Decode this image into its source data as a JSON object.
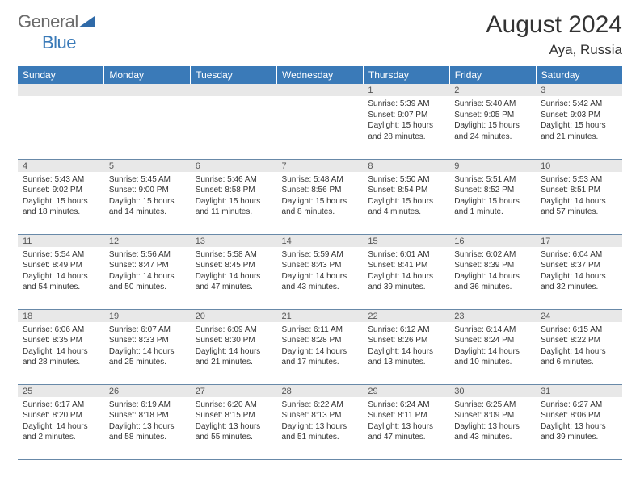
{
  "logo": {
    "text_a": "General",
    "text_b": "Blue"
  },
  "header": {
    "title": "August 2024",
    "location": "Aya, Russia"
  },
  "colors": {
    "header_bg": "#3a7ab8",
    "header_fg": "#ffffff",
    "daynum_bg": "#e8e8e8",
    "rule": "#6889a8",
    "text": "#333333"
  },
  "weekday_labels": [
    "Sunday",
    "Monday",
    "Tuesday",
    "Wednesday",
    "Thursday",
    "Friday",
    "Saturday"
  ],
  "weeks": [
    [
      null,
      null,
      null,
      null,
      {
        "n": "1",
        "sr": "Sunrise: 5:39 AM",
        "ss": "Sunset: 9:07 PM",
        "dl": "Daylight: 15 hours and 28 minutes."
      },
      {
        "n": "2",
        "sr": "Sunrise: 5:40 AM",
        "ss": "Sunset: 9:05 PM",
        "dl": "Daylight: 15 hours and 24 minutes."
      },
      {
        "n": "3",
        "sr": "Sunrise: 5:42 AM",
        "ss": "Sunset: 9:03 PM",
        "dl": "Daylight: 15 hours and 21 minutes."
      }
    ],
    [
      {
        "n": "4",
        "sr": "Sunrise: 5:43 AM",
        "ss": "Sunset: 9:02 PM",
        "dl": "Daylight: 15 hours and 18 minutes."
      },
      {
        "n": "5",
        "sr": "Sunrise: 5:45 AM",
        "ss": "Sunset: 9:00 PM",
        "dl": "Daylight: 15 hours and 14 minutes."
      },
      {
        "n": "6",
        "sr": "Sunrise: 5:46 AM",
        "ss": "Sunset: 8:58 PM",
        "dl": "Daylight: 15 hours and 11 minutes."
      },
      {
        "n": "7",
        "sr": "Sunrise: 5:48 AM",
        "ss": "Sunset: 8:56 PM",
        "dl": "Daylight: 15 hours and 8 minutes."
      },
      {
        "n": "8",
        "sr": "Sunrise: 5:50 AM",
        "ss": "Sunset: 8:54 PM",
        "dl": "Daylight: 15 hours and 4 minutes."
      },
      {
        "n": "9",
        "sr": "Sunrise: 5:51 AM",
        "ss": "Sunset: 8:52 PM",
        "dl": "Daylight: 15 hours and 1 minute."
      },
      {
        "n": "10",
        "sr": "Sunrise: 5:53 AM",
        "ss": "Sunset: 8:51 PM",
        "dl": "Daylight: 14 hours and 57 minutes."
      }
    ],
    [
      {
        "n": "11",
        "sr": "Sunrise: 5:54 AM",
        "ss": "Sunset: 8:49 PM",
        "dl": "Daylight: 14 hours and 54 minutes."
      },
      {
        "n": "12",
        "sr": "Sunrise: 5:56 AM",
        "ss": "Sunset: 8:47 PM",
        "dl": "Daylight: 14 hours and 50 minutes."
      },
      {
        "n": "13",
        "sr": "Sunrise: 5:58 AM",
        "ss": "Sunset: 8:45 PM",
        "dl": "Daylight: 14 hours and 47 minutes."
      },
      {
        "n": "14",
        "sr": "Sunrise: 5:59 AM",
        "ss": "Sunset: 8:43 PM",
        "dl": "Daylight: 14 hours and 43 minutes."
      },
      {
        "n": "15",
        "sr": "Sunrise: 6:01 AM",
        "ss": "Sunset: 8:41 PM",
        "dl": "Daylight: 14 hours and 39 minutes."
      },
      {
        "n": "16",
        "sr": "Sunrise: 6:02 AM",
        "ss": "Sunset: 8:39 PM",
        "dl": "Daylight: 14 hours and 36 minutes."
      },
      {
        "n": "17",
        "sr": "Sunrise: 6:04 AM",
        "ss": "Sunset: 8:37 PM",
        "dl": "Daylight: 14 hours and 32 minutes."
      }
    ],
    [
      {
        "n": "18",
        "sr": "Sunrise: 6:06 AM",
        "ss": "Sunset: 8:35 PM",
        "dl": "Daylight: 14 hours and 28 minutes."
      },
      {
        "n": "19",
        "sr": "Sunrise: 6:07 AM",
        "ss": "Sunset: 8:33 PM",
        "dl": "Daylight: 14 hours and 25 minutes."
      },
      {
        "n": "20",
        "sr": "Sunrise: 6:09 AM",
        "ss": "Sunset: 8:30 PM",
        "dl": "Daylight: 14 hours and 21 minutes."
      },
      {
        "n": "21",
        "sr": "Sunrise: 6:11 AM",
        "ss": "Sunset: 8:28 PM",
        "dl": "Daylight: 14 hours and 17 minutes."
      },
      {
        "n": "22",
        "sr": "Sunrise: 6:12 AM",
        "ss": "Sunset: 8:26 PM",
        "dl": "Daylight: 14 hours and 13 minutes."
      },
      {
        "n": "23",
        "sr": "Sunrise: 6:14 AM",
        "ss": "Sunset: 8:24 PM",
        "dl": "Daylight: 14 hours and 10 minutes."
      },
      {
        "n": "24",
        "sr": "Sunrise: 6:15 AM",
        "ss": "Sunset: 8:22 PM",
        "dl": "Daylight: 14 hours and 6 minutes."
      }
    ],
    [
      {
        "n": "25",
        "sr": "Sunrise: 6:17 AM",
        "ss": "Sunset: 8:20 PM",
        "dl": "Daylight: 14 hours and 2 minutes."
      },
      {
        "n": "26",
        "sr": "Sunrise: 6:19 AM",
        "ss": "Sunset: 8:18 PM",
        "dl": "Daylight: 13 hours and 58 minutes."
      },
      {
        "n": "27",
        "sr": "Sunrise: 6:20 AM",
        "ss": "Sunset: 8:15 PM",
        "dl": "Daylight: 13 hours and 55 minutes."
      },
      {
        "n": "28",
        "sr": "Sunrise: 6:22 AM",
        "ss": "Sunset: 8:13 PM",
        "dl": "Daylight: 13 hours and 51 minutes."
      },
      {
        "n": "29",
        "sr": "Sunrise: 6:24 AM",
        "ss": "Sunset: 8:11 PM",
        "dl": "Daylight: 13 hours and 47 minutes."
      },
      {
        "n": "30",
        "sr": "Sunrise: 6:25 AM",
        "ss": "Sunset: 8:09 PM",
        "dl": "Daylight: 13 hours and 43 minutes."
      },
      {
        "n": "31",
        "sr": "Sunrise: 6:27 AM",
        "ss": "Sunset: 8:06 PM",
        "dl": "Daylight: 13 hours and 39 minutes."
      }
    ]
  ]
}
